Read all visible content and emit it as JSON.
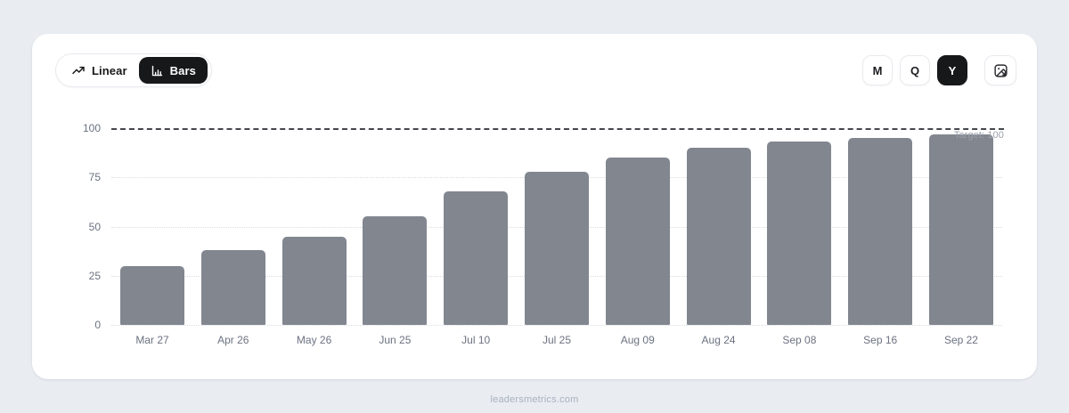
{
  "toolbar": {
    "view_toggle": {
      "options": [
        {
          "label": "Linear",
          "icon": "trend-up-icon",
          "active": false
        },
        {
          "label": "Bars",
          "icon": "bar-chart-icon",
          "active": true
        }
      ]
    },
    "period_buttons": [
      {
        "label": "M",
        "active": false
      },
      {
        "label": "Q",
        "active": false
      },
      {
        "label": "Y",
        "active": true
      }
    ],
    "export_button": {
      "icon": "export-image-icon"
    }
  },
  "chart_data": {
    "type": "bar",
    "categories": [
      "Mar 27",
      "Apr 26",
      "May 26",
      "Jun 25",
      "Jul 10",
      "Jul 25",
      "Aug 09",
      "Aug 24",
      "Sep 08",
      "Sep 16",
      "Sep 22"
    ],
    "values": [
      30,
      38,
      45,
      55,
      68,
      78,
      85,
      90,
      93,
      95,
      97
    ],
    "title": "",
    "xlabel": "",
    "ylabel": "",
    "ylim": [
      0,
      100
    ],
    "yticks": [
      0,
      25,
      50,
      75,
      100
    ],
    "target_line": {
      "value": 100,
      "label": "Target: 100"
    },
    "grid": "horizontal-dotted",
    "legend": "none",
    "bar_color": "#81868F"
  },
  "colors": {
    "page_bg": "#E9EDF2",
    "card_bg": "#FFFFFF",
    "bar": "#81868F",
    "grid_light": "#D8DCE2",
    "target_line": "#45474D",
    "active_pill": "#17181A",
    "axis_text": "#6B7280",
    "footer_text": "#A9B1BE"
  },
  "footer": {
    "text": "leadersmetrics.com"
  }
}
